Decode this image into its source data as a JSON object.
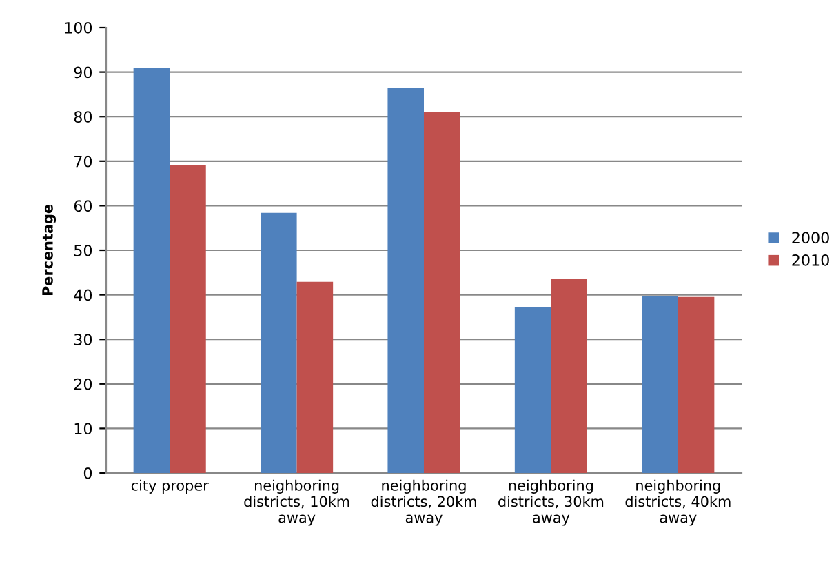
{
  "chart_data": {
    "type": "bar",
    "ylabel": "Percentage",
    "categories": [
      "city proper",
      "neighboring\ndistricts, 10km\naway",
      "neighboring\ndistricts, 20km\naway",
      "neighboring\ndistricts, 30km\naway",
      "neighboring\ndistricts, 40km\naway"
    ],
    "series": [
      {
        "name": "2000",
        "color": "#4f81bd",
        "values": [
          91,
          58.4,
          86.5,
          37.3,
          39.8
        ]
      },
      {
        "name": "2010",
        "color": "#c0504d",
        "values": [
          69.2,
          42.9,
          81,
          43.5,
          39.5
        ]
      }
    ],
    "ylim": [
      0,
      100
    ],
    "yticks": [
      0,
      10,
      20,
      30,
      40,
      50,
      60,
      70,
      80,
      90,
      100
    ],
    "grid": "y",
    "legend": "right"
  }
}
